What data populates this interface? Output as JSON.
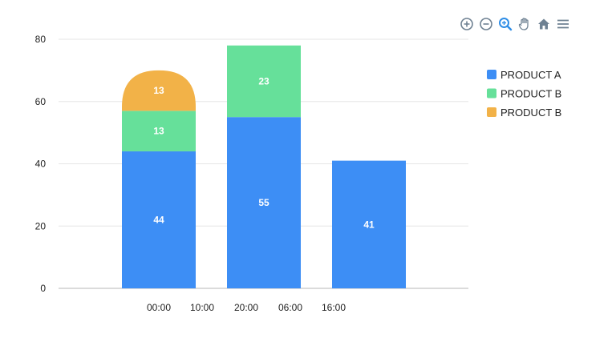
{
  "toolbar": {
    "icons": [
      "zoom-in-icon",
      "zoom-out-icon",
      "selection-zoom-icon",
      "pan-icon",
      "reset-home-icon",
      "menu-icon"
    ],
    "active_color": "#2e8de6",
    "idle_color": "#6e8192"
  },
  "colors": {
    "series": [
      "#3d8ef5",
      "#66e09a",
      "#f2b248"
    ],
    "grid": "#e6e6e6",
    "axis": "#cfcfcf"
  },
  "chart_data": {
    "type": "bar",
    "stacked": true,
    "categories": [
      "00:00",
      "20:00",
      "16:00"
    ],
    "x_tick_labels": [
      "00:00",
      "10:00",
      "20:00",
      "06:00",
      "16:00"
    ],
    "series": [
      {
        "name": "PRODUCT A",
        "values": [
          44,
          55,
          41
        ]
      },
      {
        "name": "PRODUCT B",
        "values": [
          13,
          23,
          null
        ]
      },
      {
        "name": "PRODUCT B",
        "values": [
          13,
          null,
          null
        ]
      }
    ],
    "ylim": [
      0,
      80
    ],
    "y_ticks": [
      0,
      20,
      40,
      60,
      80
    ],
    "grid": true,
    "legend_position": "right",
    "data_labels": true
  }
}
